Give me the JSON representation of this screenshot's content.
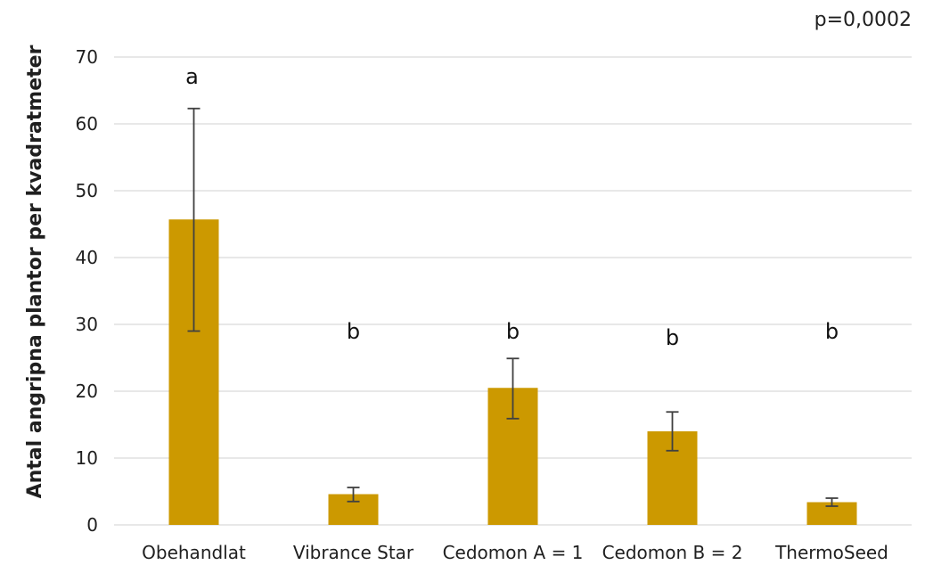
{
  "chart_data": {
    "type": "bar",
    "annotation": "p=0,0002",
    "ylabel": "Antal angripna plantor per kvadratmeter",
    "xlabel": "",
    "ylim": [
      0,
      70
    ],
    "yticks": [
      0,
      10,
      20,
      30,
      40,
      50,
      60,
      70
    ],
    "grid": true,
    "categories": [
      "Obehandlat",
      "Vibrance Star",
      "Cedomon A = 1",
      "Cedomon B = 2",
      "ThermoSeed"
    ],
    "values": [
      45.7,
      4.6,
      20.5,
      14.0,
      3.4
    ],
    "error_low": [
      29.0,
      3.5,
      15.9,
      11.1,
      2.8
    ],
    "error_high": [
      62.3,
      5.6,
      24.9,
      16.9,
      4.0
    ],
    "significance_letters": [
      "a",
      "b",
      "b",
      "b",
      "b"
    ],
    "colors": {
      "bar": "#cc9900",
      "grid": "#d9d9d9",
      "error_bar": "#404040",
      "text": "#1f1f1f"
    }
  }
}
